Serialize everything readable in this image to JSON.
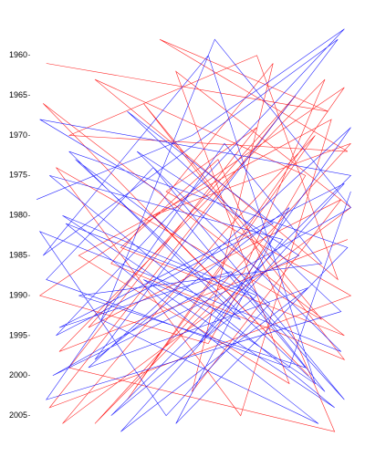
{
  "chart_data": {
    "type": "line",
    "xlim": [
      0,
      100
    ],
    "ylim": [
      1956.5,
      2008
    ],
    "y_inverted": true,
    "yticks": [
      1960,
      1965,
      1970,
      1975,
      1980,
      1985,
      1990,
      1995,
      2000,
      2005
    ],
    "series": [
      {
        "color": "#ff0000",
        "x": [
          5,
          92,
          40,
          98,
          12,
          70,
          95,
          20,
          85,
          55,
          3,
          97,
          30,
          88,
          60,
          10,
          99,
          45,
          80,
          15,
          93,
          65,
          8,
          90,
          35,
          97,
          25,
          75,
          50,
          96,
          18,
          82,
          6,
          99,
          42,
          70,
          12,
          94,
          58,
          28,
          97,
          4,
          86,
          38,
          99,
          20,
          66,
          91,
          9,
          98
        ],
        "values": [
          1961,
          1967,
          1958,
          1972,
          1970,
          1960,
          1988,
          1963,
          1975,
          1996,
          1990,
          1964,
          2003,
          1970,
          1982,
          2006,
          1979,
          1962,
          2001,
          1985,
          1968,
          2005,
          1974,
          1993,
          1966,
          1998,
          1986,
          1961,
          2002,
          1978,
          1994,
          1965,
          2004,
          1990,
          1977,
          1969,
          1999,
          2007,
          1973,
          1984,
          1995,
          1966,
          2000,
          1980,
          1971,
          2006,
          1987,
          1963,
          1997,
          1983
        ]
      },
      {
        "color": "#0000ff",
        "x": [
          2,
          50,
          97,
          8,
          75,
          30,
          96,
          5,
          60,
          90,
          15,
          85,
          40,
          3,
          99,
          25,
          70,
          10,
          88,
          55,
          4,
          95,
          20,
          80,
          45,
          98,
          12,
          65,
          35,
          94,
          6,
          78,
          52,
          99,
          18,
          86,
          28,
          97,
          9,
          62,
          91,
          14,
          74,
          42,
          3,
          96,
          33,
          83,
          7,
          99,
          57,
          22,
          89,
          11,
          68,
          97,
          38,
          5,
          80,
          99
        ],
        "values": [
          1978,
          1970,
          1956.7,
          1995,
          1981,
          1967,
          1992,
          2003,
          1971,
          1986,
          1990,
          1999,
          1977,
          1968,
          1975,
          2005,
          1990,
          1980,
          2001,
          1960,
          1985,
          1958,
          1998,
          1979,
          2006,
          1984,
          1972,
          1993,
          1988,
          2004,
          1975,
          1983,
          1996,
          1969,
          1999,
          1989,
          2007,
          1976,
          1994,
          1987,
          2002,
          1973,
          1991,
          2005,
          1982,
          1997,
          1972,
          1985,
          2000,
          1979,
          1958,
          1993,
          2006,
          1981,
          1990,
          2003,
          1974,
          1988,
          1999,
          1977
        ]
      }
    ]
  }
}
